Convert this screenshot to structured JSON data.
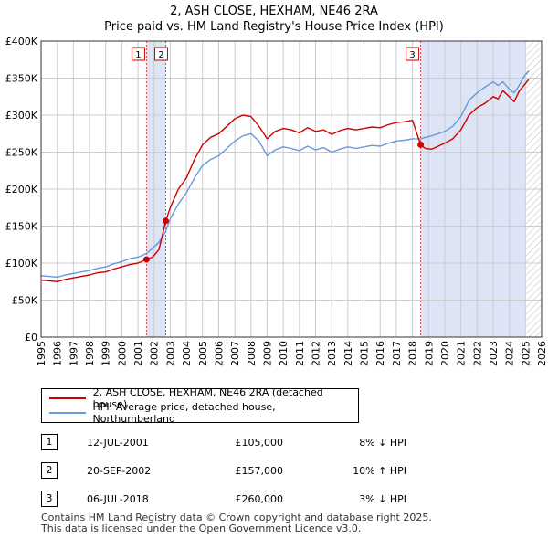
{
  "title_line1": "2, ASH CLOSE, HEXHAM, NE46 2RA",
  "title_line2": "Price paid vs. HM Land Registry's House Price Index (HPI)",
  "colors": {
    "property": "#cc0000",
    "hpi": "#6699dd",
    "shade": "#dde4f6",
    "grid": "#cccccc"
  },
  "chart_data": {
    "type": "line",
    "title": "Price paid vs. HM Land Registry's House Price Index (HPI)",
    "xlabel": "",
    "ylabel": "",
    "xlim": [
      1995,
      2026
    ],
    "ylim": [
      0,
      400000
    ],
    "y_ticks": [
      0,
      50000,
      100000,
      150000,
      200000,
      250000,
      300000,
      350000,
      400000
    ],
    "y_tick_labels": [
      "£0",
      "£50K",
      "£100K",
      "£150K",
      "£200K",
      "£250K",
      "£300K",
      "£350K",
      "£400K"
    ],
    "x_ticks": [
      1995,
      1996,
      1997,
      1998,
      1999,
      2000,
      2001,
      2002,
      2003,
      2004,
      2005,
      2006,
      2007,
      2008,
      2009,
      2010,
      2011,
      2012,
      2013,
      2014,
      2015,
      2016,
      2017,
      2018,
      2019,
      2020,
      2021,
      2022,
      2023,
      2024,
      2025,
      2026
    ],
    "x_tick_labels": [
      "1995",
      "1996",
      "1997",
      "1998",
      "1999",
      "2000",
      "2001",
      "2002",
      "2003",
      "2004",
      "2005",
      "2006",
      "2007",
      "2008",
      "2009",
      "2010",
      "2011",
      "2012",
      "2013",
      "2014",
      "2015",
      "2016",
      "2017",
      "2018",
      "2019",
      "2020",
      "2021",
      "2022",
      "2023",
      "2024",
      "2025",
      "2026"
    ],
    "series": [
      {
        "name": "2, ASH CLOSE, HEXHAM, NE46 2RA (detached house)",
        "color": "#cc0000",
        "x": [
          1995.0,
          1995.5,
          1996.0,
          1996.5,
          1997.0,
          1997.5,
          1998.0,
          1998.5,
          1999.0,
          1999.5,
          2000.0,
          2000.5,
          2001.0,
          2001.53,
          2001.9,
          2002.3,
          2002.72,
          2003.0,
          2003.5,
          2004.0,
          2004.5,
          2005.0,
          2005.5,
          2006.0,
          2006.5,
          2007.0,
          2007.5,
          2008.0,
          2008.5,
          2009.0,
          2009.5,
          2010.0,
          2010.5,
          2011.0,
          2011.5,
          2012.0,
          2012.5,
          2013.0,
          2013.5,
          2014.0,
          2014.5,
          2015.0,
          2015.5,
          2016.0,
          2016.5,
          2017.0,
          2017.5,
          2018.0,
          2018.51,
          2018.8,
          2019.2,
          2019.6,
          2020.0,
          2020.5,
          2021.0,
          2021.5,
          2022.0,
          2022.5,
          2023.0,
          2023.3,
          2023.6,
          2024.0,
          2024.3,
          2024.6,
          2024.9,
          2025.2
        ],
        "values": [
          77000,
          76000,
          75000,
          78000,
          80000,
          82000,
          84000,
          87000,
          88000,
          92000,
          95000,
          98000,
          100000,
          105000,
          108000,
          118000,
          157000,
          175000,
          200000,
          215000,
          240000,
          260000,
          270000,
          275000,
          285000,
          295000,
          300000,
          298000,
          285000,
          268000,
          278000,
          282000,
          280000,
          276000,
          283000,
          278000,
          280000,
          274000,
          279000,
          282000,
          280000,
          282000,
          284000,
          283000,
          287000,
          290000,
          291000,
          293000,
          260000,
          255000,
          254000,
          258000,
          262000,
          268000,
          280000,
          300000,
          310000,
          316000,
          325000,
          322000,
          333000,
          325000,
          318000,
          332000,
          340000,
          348000
        ]
      },
      {
        "name": "HPI: Average price, detached house, Northumberland",
        "color": "#6699dd",
        "x": [
          1995.0,
          1995.5,
          1996.0,
          1996.5,
          1997.0,
          1997.5,
          1998.0,
          1998.5,
          1999.0,
          1999.5,
          2000.0,
          2000.5,
          2001.0,
          2001.53,
          2001.9,
          2002.3,
          2002.72,
          2003.0,
          2003.5,
          2004.0,
          2004.5,
          2005.0,
          2005.5,
          2006.0,
          2006.5,
          2007.0,
          2007.5,
          2008.0,
          2008.5,
          2009.0,
          2009.5,
          2010.0,
          2010.5,
          2011.0,
          2011.5,
          2012.0,
          2012.5,
          2013.0,
          2013.5,
          2014.0,
          2014.5,
          2015.0,
          2015.5,
          2016.0,
          2016.5,
          2017.0,
          2017.5,
          2018.0,
          2018.51,
          2018.8,
          2019.2,
          2019.6,
          2020.0,
          2020.5,
          2021.0,
          2021.5,
          2022.0,
          2022.5,
          2023.0,
          2023.3,
          2023.6,
          2024.0,
          2024.3,
          2024.6,
          2024.9,
          2025.2
        ],
        "values": [
          83000,
          82000,
          81000,
          84000,
          86000,
          88000,
          90000,
          93000,
          95000,
          99000,
          102000,
          106000,
          108000,
          113000,
          120000,
          128000,
          143000,
          160000,
          180000,
          195000,
          215000,
          232000,
          240000,
          245000,
          255000,
          265000,
          272000,
          275000,
          265000,
          245000,
          253000,
          257000,
          255000,
          252000,
          258000,
          253000,
          256000,
          250000,
          254000,
          257000,
          255000,
          257000,
          259000,
          258000,
          262000,
          265000,
          266000,
          268000,
          268000,
          270000,
          272000,
          275000,
          278000,
          285000,
          298000,
          320000,
          330000,
          338000,
          345000,
          340000,
          345000,
          335000,
          330000,
          340000,
          352000,
          360000
        ]
      }
    ],
    "events": [
      {
        "label": "1",
        "x": 2001.53,
        "y": 105000
      },
      {
        "label": "2",
        "x": 2002.72,
        "y": 157000
      },
      {
        "label": "3",
        "x": 2018.51,
        "y": 260000
      }
    ],
    "shaded_ranges": [
      [
        2001.53,
        2002.72
      ],
      [
        2018.51,
        2025.0
      ]
    ],
    "hatched_range": [
      2025.0,
      2026
    ]
  },
  "legend": {
    "property_label": "2, ASH CLOSE, HEXHAM, NE46 2RA (detached house)",
    "hpi_label": "HPI: Average price, detached house, Northumberland"
  },
  "transactions": [
    {
      "num": "1",
      "date": "12-JUL-2001",
      "price": "£105,000",
      "hpi": "8% ↓ HPI"
    },
    {
      "num": "2",
      "date": "20-SEP-2002",
      "price": "£157,000",
      "hpi": "10% ↑ HPI"
    },
    {
      "num": "3",
      "date": "06-JUL-2018",
      "price": "£260,000",
      "hpi": "3% ↓ HPI"
    }
  ],
  "footer_line1": "Contains HM Land Registry data © Crown copyright and database right 2025.",
  "footer_line2": "This data is licensed under the Open Government Licence v3.0."
}
